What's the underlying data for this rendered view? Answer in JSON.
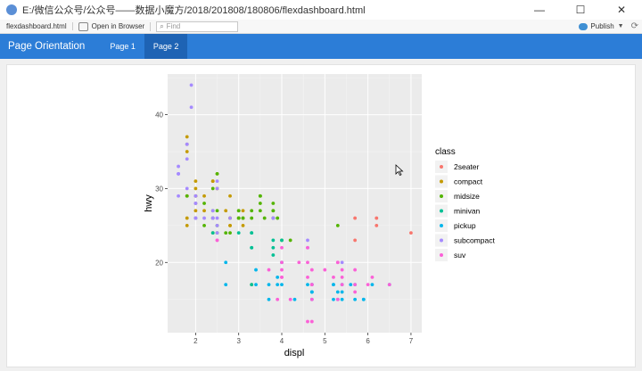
{
  "window": {
    "title": "E:/微信公众号/公众号——数据小魔方/2018/201808/180806/flexdashboard.html",
    "minimize": "—",
    "maximize": "☐",
    "close": "✕"
  },
  "toolbar": {
    "file_name": "flexdashboard.html",
    "open_in_browser": "Open in Browser",
    "find_placeholder": "Find",
    "publish": "Publish"
  },
  "navbar": {
    "brand": "Page Orientation",
    "tabs": [
      {
        "label": "Page 1",
        "active": false
      },
      {
        "label": "Page 2",
        "active": true
      }
    ]
  },
  "colors": {
    "navbar": "#2c7dd7",
    "active_tab": "#1e63b4",
    "plot_panel": "#ebebeb"
  },
  "chart_data": {
    "type": "scatter",
    "title": "",
    "xlabel": "displ",
    "ylabel": "hwy",
    "xlim": [
      1.35,
      7.25
    ],
    "ylim": [
      10.5,
      45.5
    ],
    "xticks": [
      2,
      3,
      4,
      5,
      6,
      7
    ],
    "yticks": [
      20,
      30,
      40
    ],
    "grid": true,
    "legend": {
      "title": "class",
      "position": "right"
    },
    "series": [
      {
        "name": "2seater",
        "color": "#F8766D",
        "points": [
          [
            5.7,
            26
          ],
          [
            5.7,
            23
          ],
          [
            6.2,
            26
          ],
          [
            6.2,
            25
          ],
          [
            7.0,
            24
          ]
        ]
      },
      {
        "name": "compact",
        "color": "#C49A00",
        "points": [
          [
            1.8,
            29
          ],
          [
            1.8,
            29
          ],
          [
            2.0,
            31
          ],
          [
            2.0,
            30
          ],
          [
            2.8,
            26
          ],
          [
            2.8,
            26
          ],
          [
            3.1,
            27
          ],
          [
            1.8,
            26
          ],
          [
            1.8,
            25
          ],
          [
            2.0,
            28
          ],
          [
            2.0,
            27
          ],
          [
            2.8,
            25
          ],
          [
            2.8,
            25
          ],
          [
            3.1,
            25
          ],
          [
            2.2,
            27
          ],
          [
            2.2,
            29
          ],
          [
            2.4,
            31
          ],
          [
            2.4,
            31
          ],
          [
            3.0,
            26
          ],
          [
            1.8,
            36
          ],
          [
            1.8,
            35
          ],
          [
            1.8,
            37
          ],
          [
            2.0,
            29
          ],
          [
            2.0,
            29
          ],
          [
            2.5,
            30
          ],
          [
            2.8,
            29
          ],
          [
            2.7,
            27
          ],
          [
            2.4,
            24
          ],
          [
            3.3,
            17
          ],
          [
            2.0,
            29
          ],
          [
            2.5,
            30
          ],
          [
            2.5,
            32
          ]
        ]
      },
      {
        "name": "midsize",
        "color": "#53B400",
        "points": [
          [
            2.4,
            27
          ],
          [
            2.4,
            30
          ],
          [
            3.1,
            26
          ],
          [
            3.5,
            29
          ],
          [
            3.6,
            26
          ],
          [
            2.5,
            32
          ],
          [
            2.5,
            27
          ],
          [
            3.3,
            27
          ],
          [
            3.3,
            26
          ],
          [
            3.0,
            26
          ],
          [
            3.0,
            27
          ],
          [
            3.8,
            26
          ],
          [
            3.8,
            28
          ],
          [
            3.9,
            26
          ],
          [
            2.4,
            26
          ],
          [
            2.4,
            26
          ],
          [
            3.0,
            26
          ],
          [
            3.0,
            27
          ],
          [
            3.5,
            28
          ],
          [
            3.5,
            29
          ],
          [
            4.2,
            23
          ],
          [
            3.1,
            26
          ],
          [
            3.8,
            27
          ],
          [
            3.8,
            27
          ],
          [
            3.8,
            26
          ],
          [
            5.3,
            25
          ],
          [
            2.5,
            25
          ],
          [
            2.8,
            24
          ],
          [
            3.5,
            27
          ],
          [
            2.0,
            26
          ],
          [
            2.5,
            24
          ],
          [
            1.8,
            29
          ],
          [
            2.2,
            25
          ],
          [
            2.2,
            28
          ],
          [
            2.7,
            24
          ],
          [
            3.5,
            29
          ],
          [
            4.0,
            23
          ]
        ]
      },
      {
        "name": "minivan",
        "color": "#00C094",
        "points": [
          [
            2.4,
            24
          ],
          [
            3.0,
            24
          ],
          [
            3.3,
            22
          ],
          [
            3.3,
            22
          ],
          [
            3.3,
            24
          ],
          [
            3.3,
            24
          ],
          [
            3.3,
            17
          ],
          [
            3.8,
            22
          ],
          [
            3.8,
            21
          ],
          [
            3.8,
            23
          ],
          [
            4.0,
            23
          ]
        ]
      },
      {
        "name": "pickup",
        "color": "#00B6EB",
        "points": [
          [
            2.7,
            20
          ],
          [
            2.7,
            17
          ],
          [
            3.4,
            17
          ],
          [
            3.4,
            19
          ],
          [
            3.7,
            17
          ],
          [
            3.7,
            15
          ],
          [
            3.9,
            17
          ],
          [
            4.7,
            16
          ],
          [
            4.7,
            16
          ],
          [
            4.7,
            17
          ],
          [
            5.2,
            17
          ],
          [
            5.2,
            15
          ],
          [
            5.7,
            17
          ],
          [
            5.9,
            15
          ],
          [
            4.7,
            15
          ],
          [
            4.7,
            16
          ],
          [
            5.2,
            17
          ],
          [
            5.3,
            15
          ],
          [
            5.3,
            16
          ],
          [
            5.6,
            17
          ],
          [
            6.5,
            17
          ],
          [
            6.1,
            17
          ],
          [
            5.4,
            15
          ],
          [
            5.4,
            16
          ],
          [
            4.0,
            20
          ],
          [
            4.0,
            17
          ],
          [
            4.6,
            17
          ],
          [
            5.4,
            17
          ],
          [
            3.9,
            18
          ],
          [
            4.7,
            17
          ],
          [
            5.7,
            15
          ],
          [
            5.9,
            15
          ],
          [
            4.3,
            15
          ]
        ]
      },
      {
        "name": "subcompact",
        "color": "#A58AFF",
        "points": [
          [
            1.6,
            33
          ],
          [
            1.6,
            32
          ],
          [
            1.6,
            32
          ],
          [
            1.6,
            29
          ],
          [
            1.6,
            32
          ],
          [
            1.8,
            34
          ],
          [
            1.8,
            36
          ],
          [
            1.8,
            36
          ],
          [
            2.0,
            29
          ],
          [
            2.4,
            26
          ],
          [
            2.4,
            27
          ],
          [
            2.5,
            30
          ],
          [
            2.5,
            31
          ],
          [
            2.0,
            26
          ],
          [
            2.0,
            26
          ],
          [
            2.8,
            26
          ],
          [
            3.8,
            26
          ],
          [
            3.8,
            26
          ],
          [
            4.6,
            23
          ],
          [
            4.6,
            22
          ],
          [
            5.4,
            20
          ],
          [
            1.9,
            44
          ],
          [
            1.9,
            41
          ],
          [
            2.2,
            26
          ],
          [
            2.5,
            25
          ],
          [
            2.0,
            26
          ],
          [
            2.0,
            28
          ],
          [
            2.5,
            24
          ],
          [
            2.5,
            26
          ],
          [
            1.8,
            30
          ],
          [
            2.0,
            29
          ],
          [
            2.0,
            28
          ],
          [
            2.4,
            26
          ]
        ]
      },
      {
        "name": "suv",
        "color": "#FB61D7",
        "points": [
          [
            5.3,
            20
          ],
          [
            5.3,
            15
          ],
          [
            5.3,
            20
          ],
          [
            5.7,
            17
          ],
          [
            6.0,
            17
          ],
          [
            5.7,
            19
          ],
          [
            6.1,
            18
          ],
          [
            6.5,
            17
          ],
          [
            4.0,
            19
          ],
          [
            4.0,
            18
          ],
          [
            4.7,
            17
          ],
          [
            4.7,
            15
          ],
          [
            4.7,
            17
          ],
          [
            4.6,
            18
          ],
          [
            5.0,
            19
          ],
          [
            5.4,
            19
          ],
          [
            5.4,
            18
          ],
          [
            2.5,
            23
          ],
          [
            2.5,
            23
          ],
          [
            4.2,
            15
          ],
          [
            4.6,
            12
          ],
          [
            4.7,
            19
          ],
          [
            4.7,
            12
          ],
          [
            5.7,
            16
          ],
          [
            3.9,
            15
          ],
          [
            4.0,
            20
          ],
          [
            4.6,
            20
          ],
          [
            4.6,
            22
          ],
          [
            5.4,
            17
          ],
          [
            5.2,
            18
          ],
          [
            3.7,
            19
          ],
          [
            4.4,
            20
          ],
          [
            4.0,
            18
          ],
          [
            4.0,
            22
          ]
        ]
      }
    ]
  }
}
